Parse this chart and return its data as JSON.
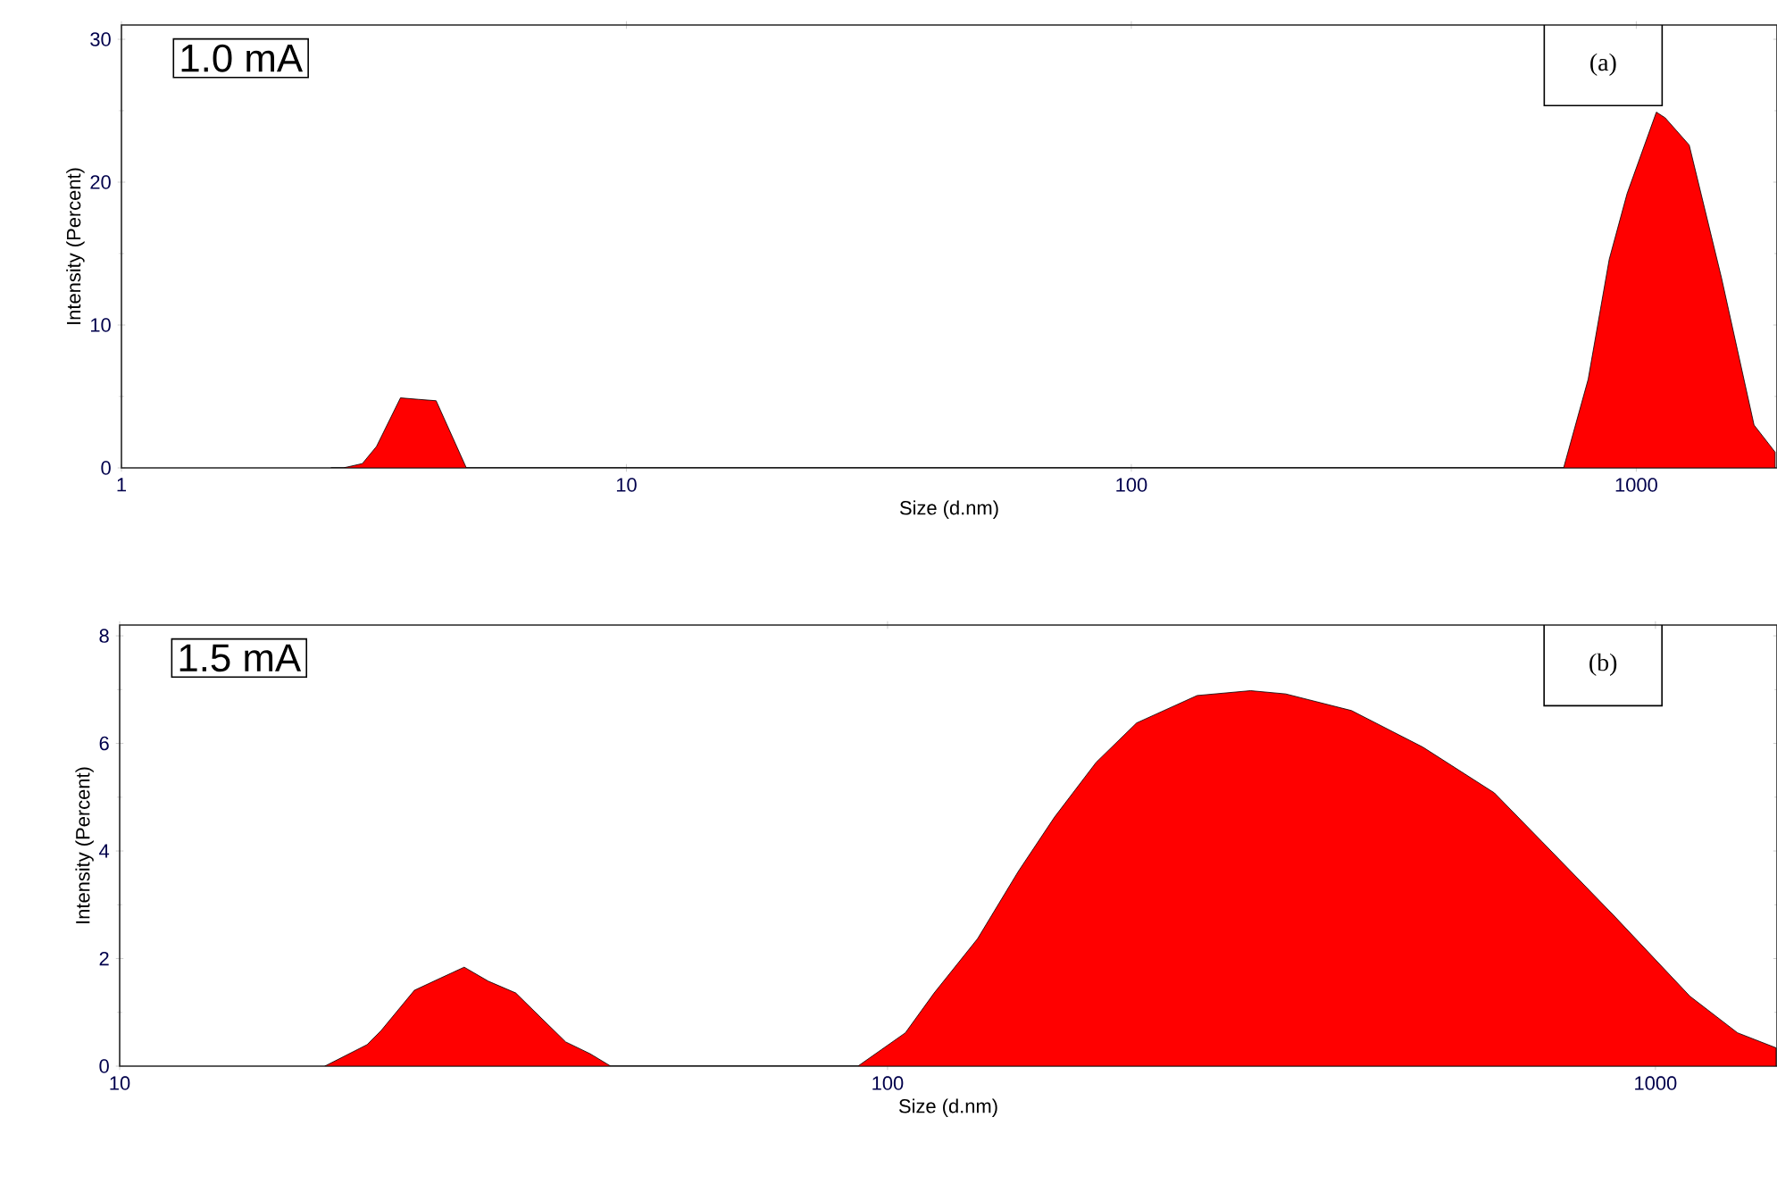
{
  "chart_data": [
    {
      "type": "area",
      "log": "x",
      "xlabel": "Size (d.nm)",
      "ylabel": "Intensity (Percent)",
      "annotations": [
        "1.0 mA",
        "(a)"
      ],
      "xlim": [
        1,
        1900
      ],
      "ylim": [
        0,
        31
      ],
      "xticks": [
        1,
        10,
        100,
        1000
      ],
      "yticks": [
        0,
        10,
        20,
        30
      ],
      "x": [
        2.6,
        2.75,
        3.0,
        3.2,
        3.57,
        3.87,
        4.2,
        4.82,
        5.2,
        718,
        803,
        884,
        959,
        1096,
        1141,
        1273,
        1475,
        1711,
        1884
      ],
      "series": [
        {
          "color": "#ff0000",
          "values": [
            0,
            0,
            0.3,
            1.5,
            4.9,
            4.8,
            4.7,
            0,
            0,
            0,
            6.2,
            14.6,
            19.2,
            24.9,
            24.5,
            22.6,
            13.3,
            3.0,
            1.1
          ]
        }
      ]
    },
    {
      "type": "area",
      "log": "x",
      "xlabel": "Size (d.nm)",
      "ylabel": "Intensity (Percent)",
      "annotations": [
        "1.5 mA",
        "(b)"
      ],
      "xlim": [
        10,
        1440
      ],
      "ylim": [
        0,
        8.2
      ],
      "xticks": [
        10,
        100,
        1000
      ],
      "yticks": [
        0,
        2,
        4,
        6,
        8
      ],
      "x": [
        18.5,
        21.0,
        21.9,
        24.2,
        26.2,
        28.1,
        30.2,
        32.8,
        35.2,
        38.1,
        41.0,
        43.6,
        85,
        91.5,
        105.5,
        115,
        131,
        148,
        165,
        187,
        211,
        253,
        297,
        330,
        402,
        498,
        617,
        711,
        880,
        1109,
        1279,
        1436
      ],
      "series": [
        {
          "color": "#ff0000",
          "values": [
            0,
            0.4,
            0.66,
            1.41,
            1.64,
            1.84,
            1.58,
            1.36,
            0.93,
            0.45,
            0.23,
            0,
            0,
            0,
            0.62,
            1.36,
            2.37,
            3.62,
            4.63,
            5.65,
            6.38,
            6.89,
            6.98,
            6.92,
            6.61,
            5.93,
            5.08,
            4.18,
            2.82,
            1.3,
            0.62,
            0.34
          ]
        }
      ]
    }
  ]
}
